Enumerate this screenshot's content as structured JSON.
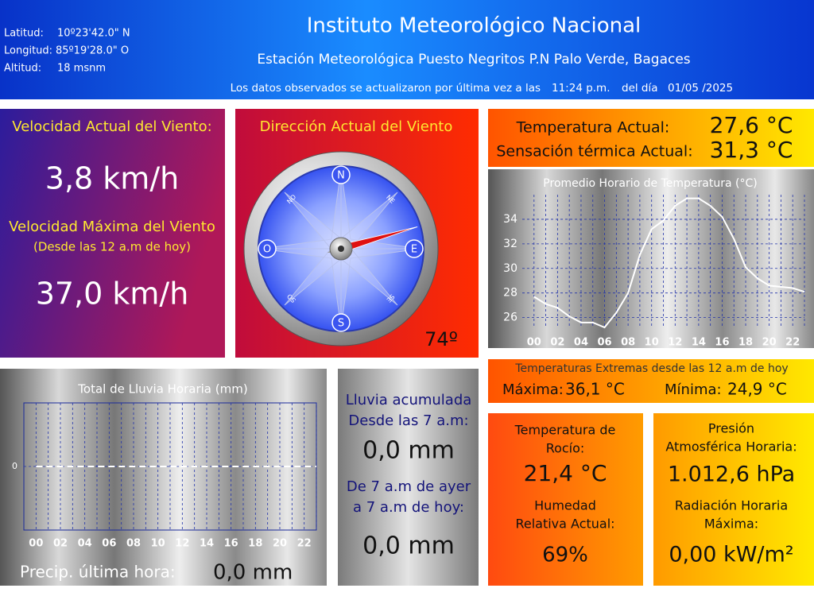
{
  "header": {
    "latitude_label": "Latitud:",
    "latitude": "10º23'42.0\" N",
    "longitude_label": "Longitud:",
    "longitude": "85º19'28.0\" O",
    "altitude_label": "Altitud:",
    "altitude": "18 msnm",
    "title": "Instituto Meteorológico Nacional",
    "subtitle": "Estación Meteorológica Puesto Negritos P.N Palo Verde, Bagaces",
    "update_text": "Los datos observados se actualizaron por última vez a las",
    "update_time": "11:24 p.m.",
    "update_day_text": "del día",
    "update_date": "01/05 /2025"
  },
  "wind": {
    "current_label": "Velocidad Actual del Viento:",
    "current": "3,8 km/h",
    "max_label": "Velocidad Máxima del Viento",
    "max_note": "(Desde las 12 a.m de hoy)",
    "max": "37,0 km/h"
  },
  "direction": {
    "title": "Dirección Actual del Viento",
    "value": 74,
    "label": "74º",
    "cardinals": [
      "N",
      "E",
      "S",
      "O"
    ],
    "intercardinals": [
      "NE",
      "SE",
      "SO",
      "NO"
    ]
  },
  "temperature": {
    "current_label": "Temperatura Actual:",
    "current": "27,6 °C",
    "feels_label": "Sensación térmica Actual:",
    "feels": "31,3 °C"
  },
  "extremes": {
    "title": "Temperaturas Extremas desde las 12 a.m de hoy",
    "max_label": "Máxima:",
    "max": "36,1 °C",
    "min_label": "Mínima:",
    "min": "24,9 °C"
  },
  "dew": {
    "dew_label": [
      "Temperatura de",
      "Rocío:"
    ],
    "dew": "21,4 °C",
    "humidity_label": [
      "Humedad",
      "Relativa Actual:"
    ],
    "humidity": "69%"
  },
  "pressure": {
    "pressure_label": [
      "Presión",
      "Atmosférica Horaria:"
    ],
    "pressure": "1.012,6 hPa",
    "radiation_label": [
      "Radiación Horaria",
      "Máxima:"
    ],
    "radiation": "0,00 kW/m²"
  },
  "rain": {
    "last_hour_label": "Precip. última hora:",
    "last_hour": "0,0 mm",
    "accum_label": [
      "Lluvia acumulada",
      "Desde las 7 a.m:"
    ],
    "accum": "0,0 mm",
    "day_label": [
      "De 7 a.m de ayer",
      "a 7 a.m de hoy:"
    ],
    "day": "0,0 mm"
  },
  "chart_data": [
    {
      "type": "line",
      "title": "Promedio Horario de Temperatura (°C)",
      "x": [
        0,
        1,
        2,
        3,
        4,
        5,
        6,
        7,
        8,
        9,
        10,
        11,
        12,
        13,
        14,
        15,
        16,
        17,
        18,
        19,
        20,
        21,
        22,
        23
      ],
      "values": [
        27.7,
        27.1,
        26.8,
        26.1,
        25.6,
        25.6,
        25.2,
        26.4,
        28.0,
        31.1,
        33.2,
        33.9,
        35.1,
        35.7,
        35.7,
        35.1,
        34.2,
        32.4,
        30.1,
        29.2,
        28.6,
        28.5,
        28.4,
        28.1
      ],
      "color": "#ffffff",
      "xlim": [
        -1,
        23
      ],
      "ylim": [
        25.2,
        36
      ],
      "xticks": [
        {
          "value": 0,
          "label": "00"
        },
        {
          "value": 2,
          "label": "02"
        },
        {
          "value": 4,
          "label": "04"
        },
        {
          "value": 6,
          "label": "06"
        },
        {
          "value": 8,
          "label": "08"
        },
        10,
        12,
        14,
        16,
        18,
        20,
        22
      ],
      "yticks": [
        26,
        28,
        30,
        32,
        34
      ],
      "grid": true
    },
    {
      "type": "line",
      "title": "Total de Lluvia Horaria (mm)",
      "x": [
        0,
        1,
        2,
        3,
        4,
        5,
        6,
        7,
        8,
        9,
        10,
        11,
        12,
        13,
        14,
        15,
        16,
        17,
        18,
        19,
        20,
        21,
        22,
        23
      ],
      "values": [
        0,
        0,
        0,
        0,
        0,
        0,
        0,
        0,
        0,
        0,
        0,
        0,
        0,
        0,
        0,
        0,
        0,
        0,
        0,
        0,
        0,
        0,
        0,
        0
      ],
      "color": "#ffffff",
      "xlim": [
        -1,
        23
      ],
      "ylim": [
        -1,
        1
      ],
      "xticks": [
        {
          "value": 0,
          "label": "00"
        },
        {
          "value": 2,
          "label": "02"
        },
        {
          "value": 4,
          "label": "04"
        },
        {
          "value": 6,
          "label": "06"
        },
        {
          "value": 8,
          "label": "08"
        },
        10,
        12,
        14,
        16,
        18,
        20,
        22
      ],
      "yticks": [
        0
      ],
      "grid": true
    }
  ]
}
